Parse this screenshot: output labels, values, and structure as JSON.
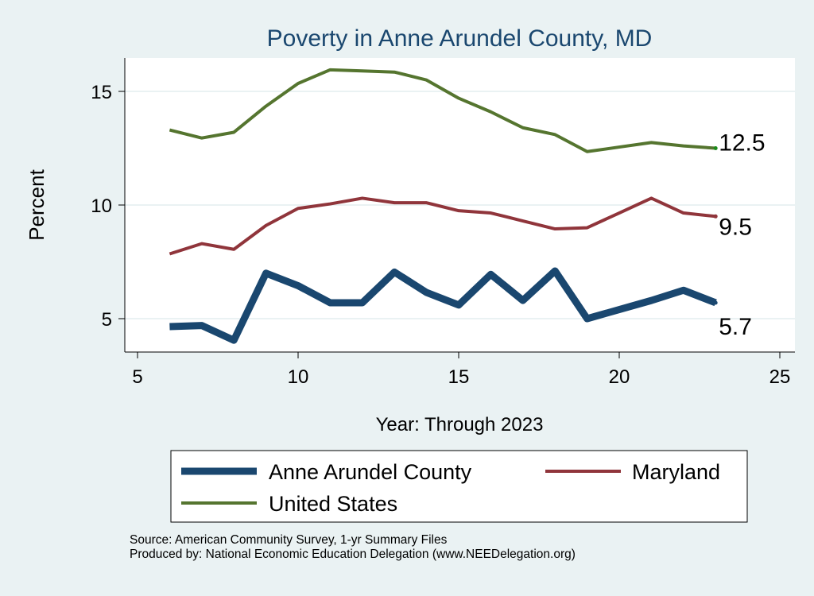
{
  "chart_data": {
    "type": "line",
    "title": "Poverty in Anne Arundel County, MD",
    "xlabel": "Year: Through 2023",
    "ylabel": "Percent",
    "xlim": [
      5,
      25
    ],
    "ylim": [
      3.5,
      16.5
    ],
    "xticks": [
      "5",
      "10",
      "15",
      "20",
      "25"
    ],
    "yticks": [
      "5",
      "10",
      "15"
    ],
    "grid": true,
    "legend_position": "bottom",
    "x": [
      6,
      7,
      8,
      9,
      10,
      11,
      12,
      13,
      14,
      15,
      16,
      17,
      18,
      19,
      20,
      21,
      22,
      23
    ],
    "series": [
      {
        "name": "Anne Arundel County",
        "color": "#1a476f",
        "end_label": "5.7",
        "values": [
          4.65,
          4.7,
          4.05,
          7.0,
          6.45,
          5.7,
          5.7,
          7.05,
          6.15,
          5.6,
          6.95,
          5.8,
          7.1,
          5.0,
          5.4,
          5.8,
          6.25,
          5.7
        ]
      },
      {
        "name": "Maryland",
        "color": "#90353b",
        "end_label": "9.5",
        "values": [
          7.85,
          8.3,
          8.05,
          9.1,
          9.85,
          10.05,
          10.3,
          10.1,
          10.1,
          9.75,
          9.65,
          9.3,
          8.95,
          9.0,
          9.65,
          10.3,
          9.65,
          9.5
        ]
      },
      {
        "name": "United States",
        "color": "#55752f",
        "end_label": "12.5",
        "values": [
          13.3,
          12.95,
          13.2,
          14.35,
          15.35,
          15.95,
          15.9,
          15.85,
          15.5,
          14.7,
          14.1,
          13.4,
          13.1,
          12.35,
          12.55,
          12.75,
          12.6,
          12.5
        ]
      }
    ],
    "notes": [
      "Source: American Community Survey, 1-yr Summary Files",
      "Produced by: National Economic Education Delegation (www.NEEDelegation.org)"
    ]
  }
}
